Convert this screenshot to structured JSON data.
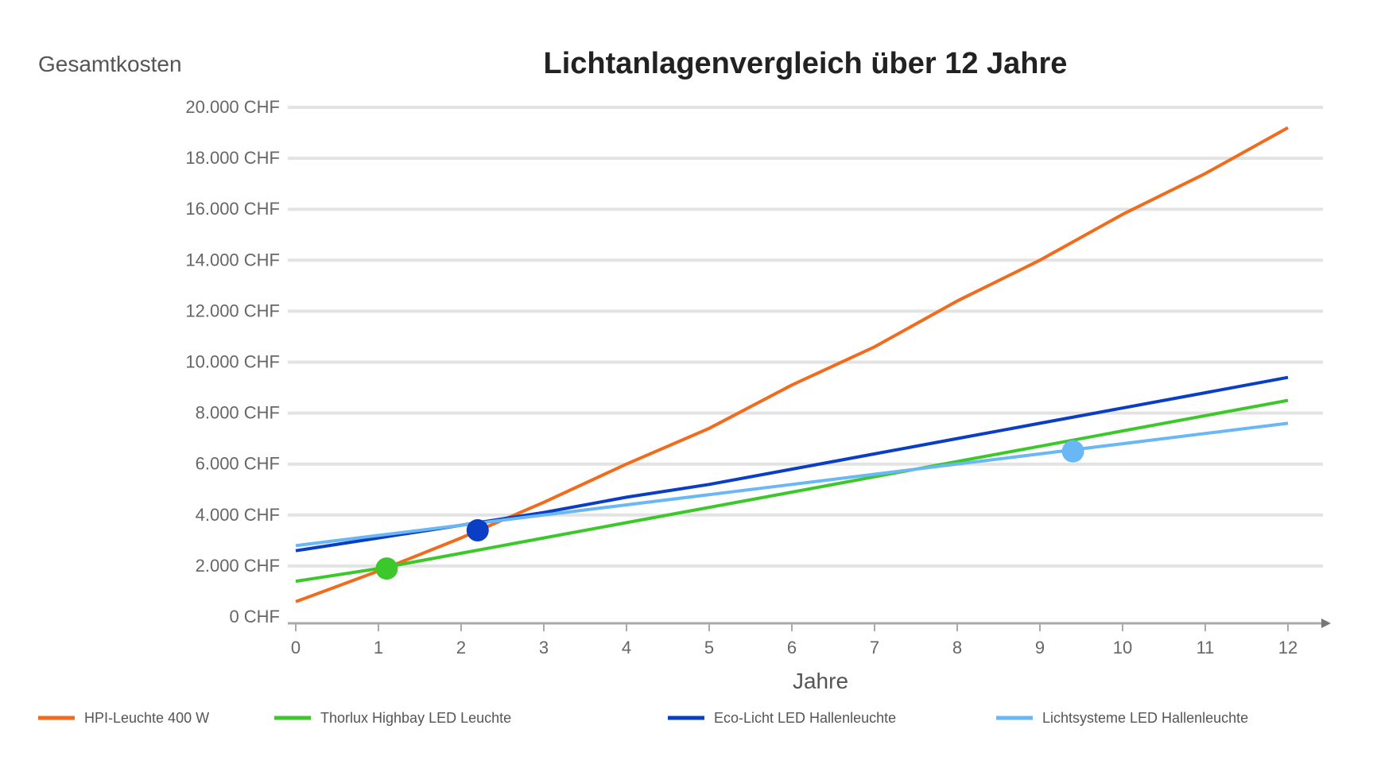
{
  "chart_data": {
    "type": "line",
    "title": "Lichtanlagenvergleich über 12 Jahre",
    "ylabel": "Gesamtkosten",
    "xlabel": "Jahre",
    "x": [
      0,
      1,
      2,
      3,
      4,
      5,
      6,
      7,
      8,
      9,
      10,
      11,
      12
    ],
    "x_ticks": [
      "0",
      "1",
      "2",
      "3",
      "4",
      "5",
      "6",
      "7",
      "8",
      "9",
      "10",
      "11",
      "12"
    ],
    "y_ticks": [
      "0 CHF",
      "2.000 CHF",
      "4.000 CHF",
      "6.000 CHF",
      "8.000 CHF",
      "10.000 CHF",
      "12.000 CHF",
      "14.000 CHF",
      "16.000 CHF",
      "18.000 CHF",
      "20.000 CHF"
    ],
    "ylim": [
      0,
      20000
    ],
    "xlim": [
      0,
      12
    ],
    "grid": "horizontal",
    "legend_position": "bottom",
    "series": [
      {
        "name": "HPI-Leuchte 400 W",
        "color": "#f26b1d",
        "values": [
          600,
          1800,
          3100,
          4500,
          6000,
          7400,
          9100,
          10600,
          12400,
          14000,
          15800,
          17400,
          19200
        ]
      },
      {
        "name": "Thorlux Highbay LED Leuchte",
        "color": "#3cc82a",
        "values": [
          1400,
          1900,
          2500,
          3100,
          3700,
          4300,
          4900,
          5500,
          6100,
          6700,
          7300,
          7900,
          8500
        ]
      },
      {
        "name": "Eco-Licht LED Hallenleuchte",
        "color": "#0a3ec4",
        "values": [
          2600,
          3100,
          3600,
          4100,
          4700,
          5200,
          5800,
          6400,
          7000,
          7600,
          8200,
          8800,
          9400
        ]
      },
      {
        "name": "Lichtsysteme LED Hallenleuchte",
        "color": "#69b7f5",
        "values": [
          2800,
          3200,
          3600,
          4000,
          4400,
          4800,
          5200,
          5600,
          6000,
          6400,
          6800,
          7200,
          7600
        ]
      }
    ],
    "markers": [
      {
        "series": "Thorlux Highbay LED Leuchte",
        "x": 1.1,
        "y": 1900,
        "color": "#3cc82a"
      },
      {
        "series": "Eco-Licht LED Hallenleuchte",
        "x": 2.2,
        "y": 3400,
        "color": "#0a3ec4"
      },
      {
        "series": "Lichtsysteme LED Hallenleuchte",
        "x": 9.4,
        "y": 6500,
        "color": "#69b7f5"
      }
    ]
  }
}
